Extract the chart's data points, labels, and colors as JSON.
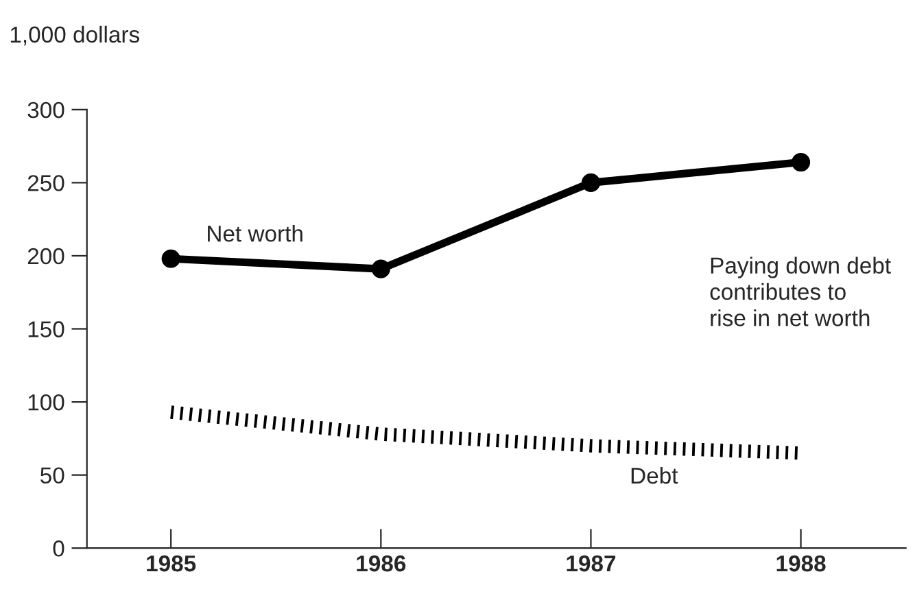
{
  "chart_data": {
    "type": "line",
    "ylabel": "1,000 dollars",
    "x": [
      1985,
      1986,
      1987,
      1988
    ],
    "series": [
      {
        "name": "Net worth",
        "color": "#000000",
        "values": [
          198,
          191,
          250,
          264
        ],
        "marker": "circle",
        "line_style": "solid"
      },
      {
        "name": "Debt",
        "color": "#000000",
        "values": [
          93,
          78,
          70,
          65
        ],
        "marker": "none",
        "line_style": "dotted"
      }
    ],
    "xlim": [
      1984.6,
      1988.5
    ],
    "xticks": [
      1985,
      1986,
      1987,
      1988
    ],
    "ylim": [
      0,
      300
    ],
    "yticks": [
      0,
      50,
      100,
      150,
      200,
      250,
      300
    ],
    "grid": false,
    "legend": false,
    "annotations": [
      "Paying down debt\ncontributes to\nrise in net worth"
    ]
  }
}
